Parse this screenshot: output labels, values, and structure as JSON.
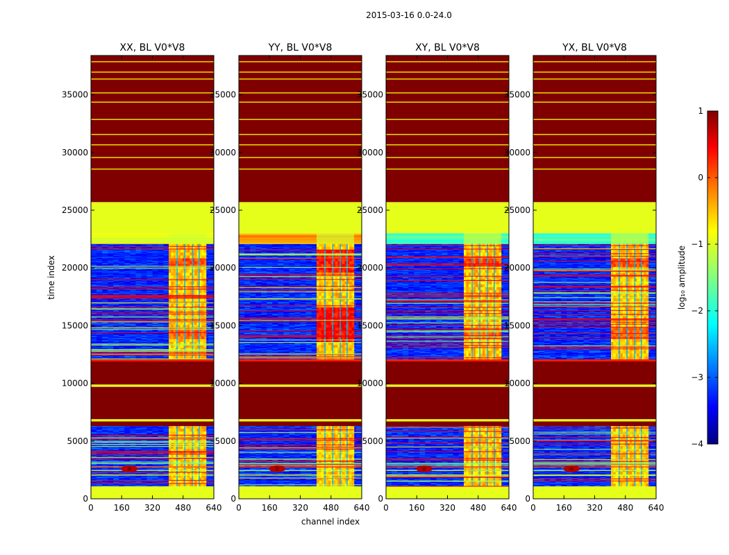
{
  "chart_data": {
    "type": "heatmap",
    "title": "2015-03-16 0.0-24.0",
    "xlabel": "channel index",
    "ylabel": "time index",
    "xlim": [
      0,
      640
    ],
    "ylim": [
      0,
      38400
    ],
    "x_ticks": [
      "0",
      "160",
      "320",
      "480",
      "640"
    ],
    "y_ticks": [
      "0",
      "5000",
      "10000",
      "15000",
      "20000",
      "25000",
      "30000",
      "35000"
    ],
    "x_tick_values": [
      0,
      160,
      320,
      480,
      640
    ],
    "y_tick_values": [
      0,
      5000,
      10000,
      15000,
      20000,
      25000,
      30000,
      35000
    ],
    "colorbar": {
      "label": "log₁₀ amplitude",
      "range": [
        -4,
        1
      ],
      "ticks": [
        "1",
        "0",
        "−1",
        "−2",
        "−3",
        "−4"
      ],
      "tick_values": [
        1,
        0,
        -1,
        -2,
        -3,
        -4
      ],
      "colormap": "jet"
    },
    "panels": [
      {
        "title": "XX, BL V0*V8",
        "hot_band": [
          405,
          600
        ],
        "strong": false,
        "top_band_level": 0.62
      },
      {
        "title": "YY, BL V0*V8",
        "hot_band": [
          405,
          600
        ],
        "strong": true,
        "top_band_level": 0.72
      },
      {
        "title": "XY, BL V0*V8",
        "hot_band": [
          405,
          600
        ],
        "strong": false,
        "top_band_level": 0.42
      },
      {
        "title": "YX, BL V0*V8",
        "hot_band": [
          405,
          600
        ],
        "strong": false,
        "top_band_level": 0.44
      }
    ],
    "time_segments": [
      {
        "from": 0,
        "to": 1100,
        "kind": "flagged"
      },
      {
        "from": 1100,
        "to": 6300,
        "kind": "data"
      },
      {
        "from": 6300,
        "to": 6700,
        "kind": "saturated"
      },
      {
        "from": 6700,
        "to": 6900,
        "kind": "flagged"
      },
      {
        "from": 6900,
        "to": 9700,
        "kind": "saturated"
      },
      {
        "from": 9700,
        "to": 9900,
        "kind": "flagged"
      },
      {
        "from": 9900,
        "to": 11900,
        "kind": "saturated"
      },
      {
        "from": 11900,
        "to": 12100,
        "kind": "bright"
      },
      {
        "from": 12100,
        "to": 22100,
        "kind": "data"
      },
      {
        "from": 22100,
        "to": 23000,
        "kind": "noisy_top"
      },
      {
        "from": 23000,
        "to": 25700,
        "kind": "flagged"
      },
      {
        "from": 25700,
        "to": 38400,
        "kind": "saturated"
      }
    ]
  }
}
